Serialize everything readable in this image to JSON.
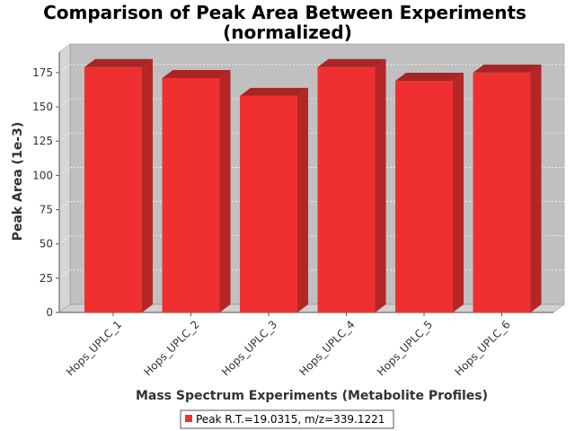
{
  "chart_data": {
    "type": "bar",
    "title": "Comparison of Peak Area Between Experiments",
    "subtitle": "(normalized)",
    "xlabel": "Mass Spectrum Experiments (Metabolite Profiles)",
    "ylabel": "Peak Area (1e-3)",
    "categories": [
      "Hops_UPLC_1",
      "Hops_UPLC_2",
      "Hops_UPLC_3",
      "Hops_UPLC_4",
      "Hops_UPLC_5",
      "Hops_UPLC_6"
    ],
    "series": [
      {
        "name": "Peak R.T.=19.0315, m/z=339.1221",
        "color": "#f03030",
        "values": [
          179,
          171,
          158,
          179,
          169,
          175
        ]
      }
    ],
    "ylim": [
      0,
      190
    ],
    "yticks": [
      0,
      25,
      50,
      75,
      100,
      125,
      150,
      175
    ],
    "grid": true,
    "legend": "bottom-center"
  }
}
